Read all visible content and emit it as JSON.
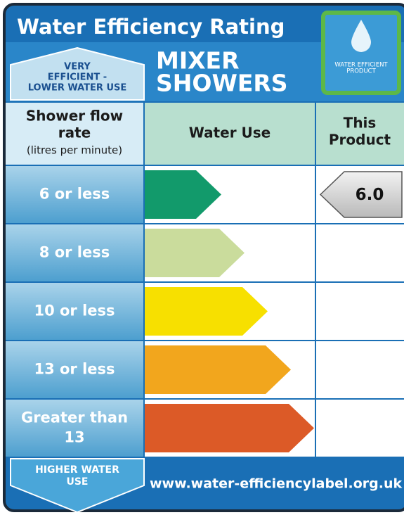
{
  "title": "Water Efficiency Rating",
  "product_type": [
    "MIXER",
    "SHOWERS"
  ],
  "badge": [
    "WATER EFFICIENT",
    "PRODUCT"
  ],
  "top_arrow": [
    "VERY",
    "EFFICIENT -",
    "LOWER WATER USE"
  ],
  "header": {
    "flow": [
      "Shower flow",
      "rate",
      "(litres per minute)"
    ],
    "use": "Water Use",
    "product": [
      "This",
      "Product"
    ]
  },
  "rows": [
    {
      "label": [
        "6 or less"
      ],
      "color": "#129a6b"
    },
    {
      "label": [
        "8 or less"
      ],
      "color": "#cadc9c"
    },
    {
      "label": [
        "10 or less"
      ],
      "color": "#f7e000"
    },
    {
      "label": [
        "13 or less"
      ],
      "color": "#f2a61d"
    },
    {
      "label": [
        "Greater than",
        "13"
      ],
      "color": "#dc5a27"
    }
  ],
  "product_row": 0,
  "product_value": "6.0",
  "bottom_arrow": [
    "HIGHER WATER",
    "USE"
  ],
  "url": "www.water-efficiencylabel.org.uk"
}
